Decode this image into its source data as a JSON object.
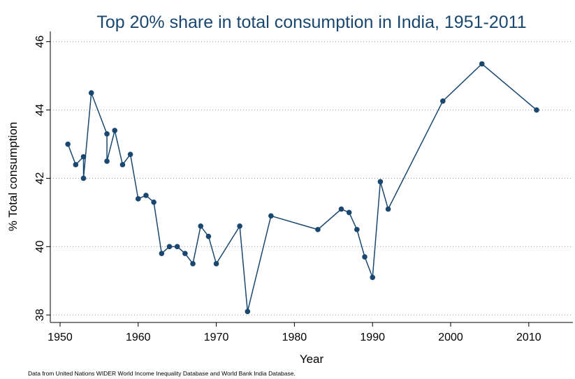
{
  "chart_data": {
    "type": "line",
    "title": "Top 20% share in total consumption in India, 1951-2011",
    "x_label": "Year",
    "y_label": "% Total consumption",
    "note": "Data from United Nations WIDER World Income Inequality Database and World Bank India Database.",
    "x": [
      1951,
      1952,
      1953,
      1953,
      1954,
      1956,
      1956,
      1957,
      1958,
      1959,
      1960,
      1961,
      1962,
      1963,
      1964,
      1965,
      1966,
      1967,
      1968,
      1969,
      1970,
      1973,
      1974,
      1977,
      1983,
      1986,
      1987,
      1988,
      1989,
      1990,
      1991,
      1992,
      1999,
      2004,
      2011
    ],
    "series": [
      {
        "name": "Top 20% share",
        "color": "#1a476f",
        "values": [
          43.0,
          42.4,
          42.63,
          42.0,
          44.5,
          43.3,
          42.5,
          43.4,
          42.4,
          42.7,
          41.4,
          41.5,
          41.3,
          39.8,
          40.0,
          40.0,
          39.8,
          39.5,
          40.6,
          40.3,
          39.5,
          40.6,
          38.1,
          40.9,
          40.5,
          41.1,
          41.0,
          40.5,
          39.7,
          39.1,
          41.9,
          41.1,
          44.26,
          45.35,
          44.0
        ]
      }
    ],
    "xlim": [
      1948.75,
      2015.65
    ],
    "xticks": [
      1950,
      1960,
      1970,
      1980,
      1990,
      2000,
      2010
    ],
    "ylim": [
      37.78,
      46.3
    ],
    "yticks": [
      38,
      40,
      42,
      44,
      46
    ],
    "grid": true
  }
}
